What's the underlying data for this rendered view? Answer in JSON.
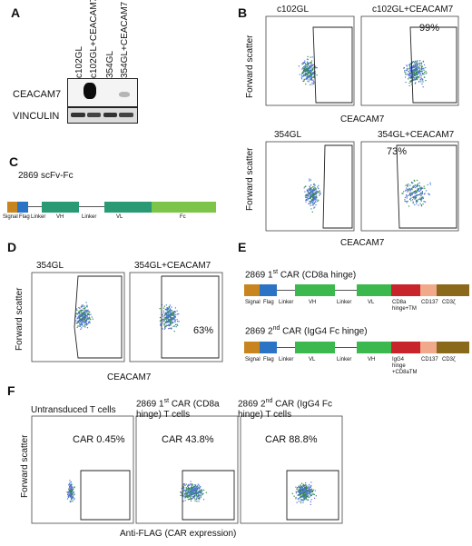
{
  "panels": [
    "A",
    "B",
    "C",
    "D",
    "E",
    "F"
  ],
  "A": {
    "lanes": [
      "c102GL",
      "c102GL+CEACAM7",
      "354GL",
      "354GL+CEACAM7"
    ],
    "rows": [
      "CEACAM7",
      "VINCULIN"
    ]
  },
  "B": {
    "ylabel": "Forward scatter",
    "xlabel": "CEACAM7",
    "plots": [
      {
        "label": "c102GL",
        "pct": ""
      },
      {
        "label": "c102GL+CEACAM7",
        "pct": "99%"
      },
      {
        "label": "354GL",
        "pct": ""
      },
      {
        "label": "354GL+CEACAM7",
        "pct": "73%"
      }
    ]
  },
  "C": {
    "title": "2869 scFv-Fc",
    "segments": [
      "Signal",
      "Flag",
      "Linker",
      "VH",
      "Linker",
      "VL",
      "Fc"
    ],
    "colors": {
      "signal": "#c8841e",
      "flag": "#2b73c4",
      "vh": "#2a9a74",
      "vl": "#2a9a74",
      "fc": "#7dc54a"
    }
  },
  "D": {
    "ylabel": "Forward scatter",
    "xlabel": "CEACAM7",
    "plots": [
      {
        "label": "354GL",
        "pct": ""
      },
      {
        "label": "354GL+CEACAM7",
        "pct": "63%"
      }
    ]
  },
  "E": {
    "car1": {
      "title_pre": "2869 1",
      "title_sup": "st",
      "title_post": " CAR (CD8a hinge)",
      "labels": [
        "Signal",
        "Flag",
        "Linker",
        "VH",
        "Linker",
        "VL",
        "CD8a hinge+TM",
        "CD137",
        "CD3ζ"
      ]
    },
    "car2": {
      "title_pre": "2869 2",
      "title_sup": "nd",
      "title_post": " CAR (IgG4 Fc hinge)",
      "labels": [
        "Signal",
        "Flag",
        "Linker",
        "VL",
        "Linker",
        "VH",
        "IgG4 hinge +CD8aTM",
        "CD137",
        "CD3ζ"
      ]
    },
    "colors": {
      "signal": "#c8841e",
      "flag": "#2b73c4",
      "vh": "#3cb94e",
      "vl": "#3cb94e",
      "hinge": "#c8242b",
      "cd137": "#f0a98a",
      "cd3z": "#8a6a1a"
    }
  },
  "F": {
    "ylabel": "Forward scatter",
    "xlabel": "Anti-FLAG (CAR expression)",
    "plots": [
      {
        "title": "Untransduced  T cells",
        "pct": "CAR 0.45%"
      },
      {
        "title_pre": "2869 1",
        "title_sup": "st",
        "title_post": " CAR (CD8a hinge) T cells",
        "pct": "CAR 43.8%"
      },
      {
        "title_pre": "2869 2",
        "title_sup": "nd",
        "title_post": " CAR (IgG4 Fc hinge) T cells",
        "pct": "CAR 88.8%"
      }
    ]
  }
}
